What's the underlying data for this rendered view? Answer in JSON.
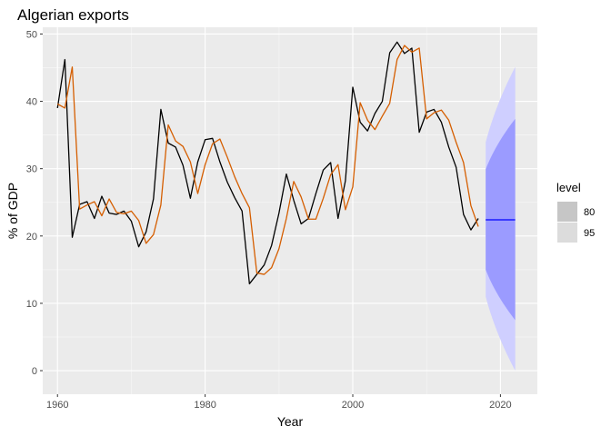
{
  "chart_data": {
    "type": "line",
    "title": "Algerian exports",
    "xlabel": "Year",
    "ylabel": "% of GDP",
    "xlim": [
      1958,
      2025
    ],
    "ylim": [
      -3.5,
      51
    ],
    "xticks": [
      1960,
      1980,
      2000,
      2020
    ],
    "yticks": [
      0,
      10,
      20,
      30,
      40,
      50
    ],
    "grid": true,
    "legend": {
      "title": "level",
      "position": "right",
      "entries": [
        {
          "label": "80",
          "color": "#c6c6c6"
        },
        {
          "label": "95",
          "color": "#dcdcdc"
        }
      ]
    },
    "series": [
      {
        "color": "#000000",
        "x": [
          1960,
          1961,
          1962,
          1963,
          1964,
          1965,
          1966,
          1967,
          1968,
          1969,
          1970,
          1971,
          1972,
          1973,
          1974,
          1975,
          1976,
          1977,
          1978,
          1979,
          1980,
          1981,
          1982,
          1983,
          1984,
          1985,
          1986,
          1987,
          1988,
          1989,
          1990,
          1991,
          1992,
          1993,
          1994,
          1995,
          1996,
          1997,
          1998,
          1999,
          2000,
          2001,
          2002,
          2003,
          2004,
          2005,
          2006,
          2007,
          2008,
          2009,
          2010,
          2011,
          2012,
          2013,
          2014,
          2015,
          2016,
          2017
        ],
        "y": [
          39.0,
          46.2,
          19.8,
          24.7,
          25.1,
          22.6,
          25.9,
          23.4,
          23.2,
          23.7,
          22.2,
          18.4,
          20.6,
          25.5,
          38.8,
          33.8,
          33.2,
          30.5,
          25.6,
          31.0,
          34.3,
          34.5,
          31.0,
          28.0,
          25.7,
          23.7,
          12.9,
          14.3,
          15.7,
          18.6,
          23.4,
          29.2,
          25.3,
          21.8,
          22.6,
          26.3,
          29.8,
          30.9,
          22.6,
          28.2,
          42.1,
          36.9,
          35.6,
          38.2,
          40.0,
          47.2,
          48.8,
          47.1,
          47.9,
          35.4,
          38.4,
          38.8,
          36.9,
          33.2,
          30.2,
          23.2,
          20.9,
          22.6
        ]
      },
      {
        "color": "#d55e00",
        "x": [
          1960,
          1961,
          1962,
          1963,
          1964,
          1965,
          1966,
          1967,
          1968,
          1969,
          1970,
          1971,
          1972,
          1973,
          1974,
          1975,
          1976,
          1977,
          1978,
          1979,
          1980,
          1981,
          1982,
          1983,
          1984,
          1985,
          1986,
          1987,
          1988,
          1989,
          1990,
          1991,
          1992,
          1993,
          1994,
          1995,
          1996,
          1997,
          1998,
          1999,
          2000,
          2001,
          2002,
          2003,
          2004,
          2005,
          2006,
          2007,
          2008,
          2009,
          2010,
          2011,
          2012,
          2013,
          2014,
          2015,
          2016,
          2017
        ],
        "y": [
          39.6,
          39.0,
          45.1,
          24.0,
          24.6,
          25.1,
          23.0,
          25.5,
          23.5,
          23.3,
          23.7,
          22.3,
          18.9,
          20.2,
          24.6,
          36.5,
          34.1,
          33.3,
          31.0,
          26.3,
          30.6,
          33.7,
          34.4,
          31.7,
          28.8,
          26.3,
          24.2,
          14.5,
          14.3,
          15.3,
          18.1,
          22.6,
          28.1,
          25.8,
          22.5,
          22.5,
          25.6,
          29.1,
          30.6,
          23.9,
          27.3,
          39.8,
          37.2,
          35.8,
          37.8,
          39.7,
          46.2,
          48.3,
          47.3,
          47.9,
          37.4,
          38.3,
          38.7,
          37.2,
          33.9,
          30.9,
          24.5,
          21.4
        ]
      }
    ],
    "forecast": {
      "color": "#0000ff",
      "x": [
        2018,
        2022
      ],
      "mean": [
        22.4,
        22.4
      ],
      "lower80": [
        15.0,
        7.5
      ],
      "upper80": [
        29.9,
        37.4
      ],
      "lower95": [
        11.0,
        0.0
      ],
      "upper95": [
        33.9,
        45.1
      ],
      "fill80": "#9b9bff",
      "fill95": "#cfcfff"
    }
  }
}
